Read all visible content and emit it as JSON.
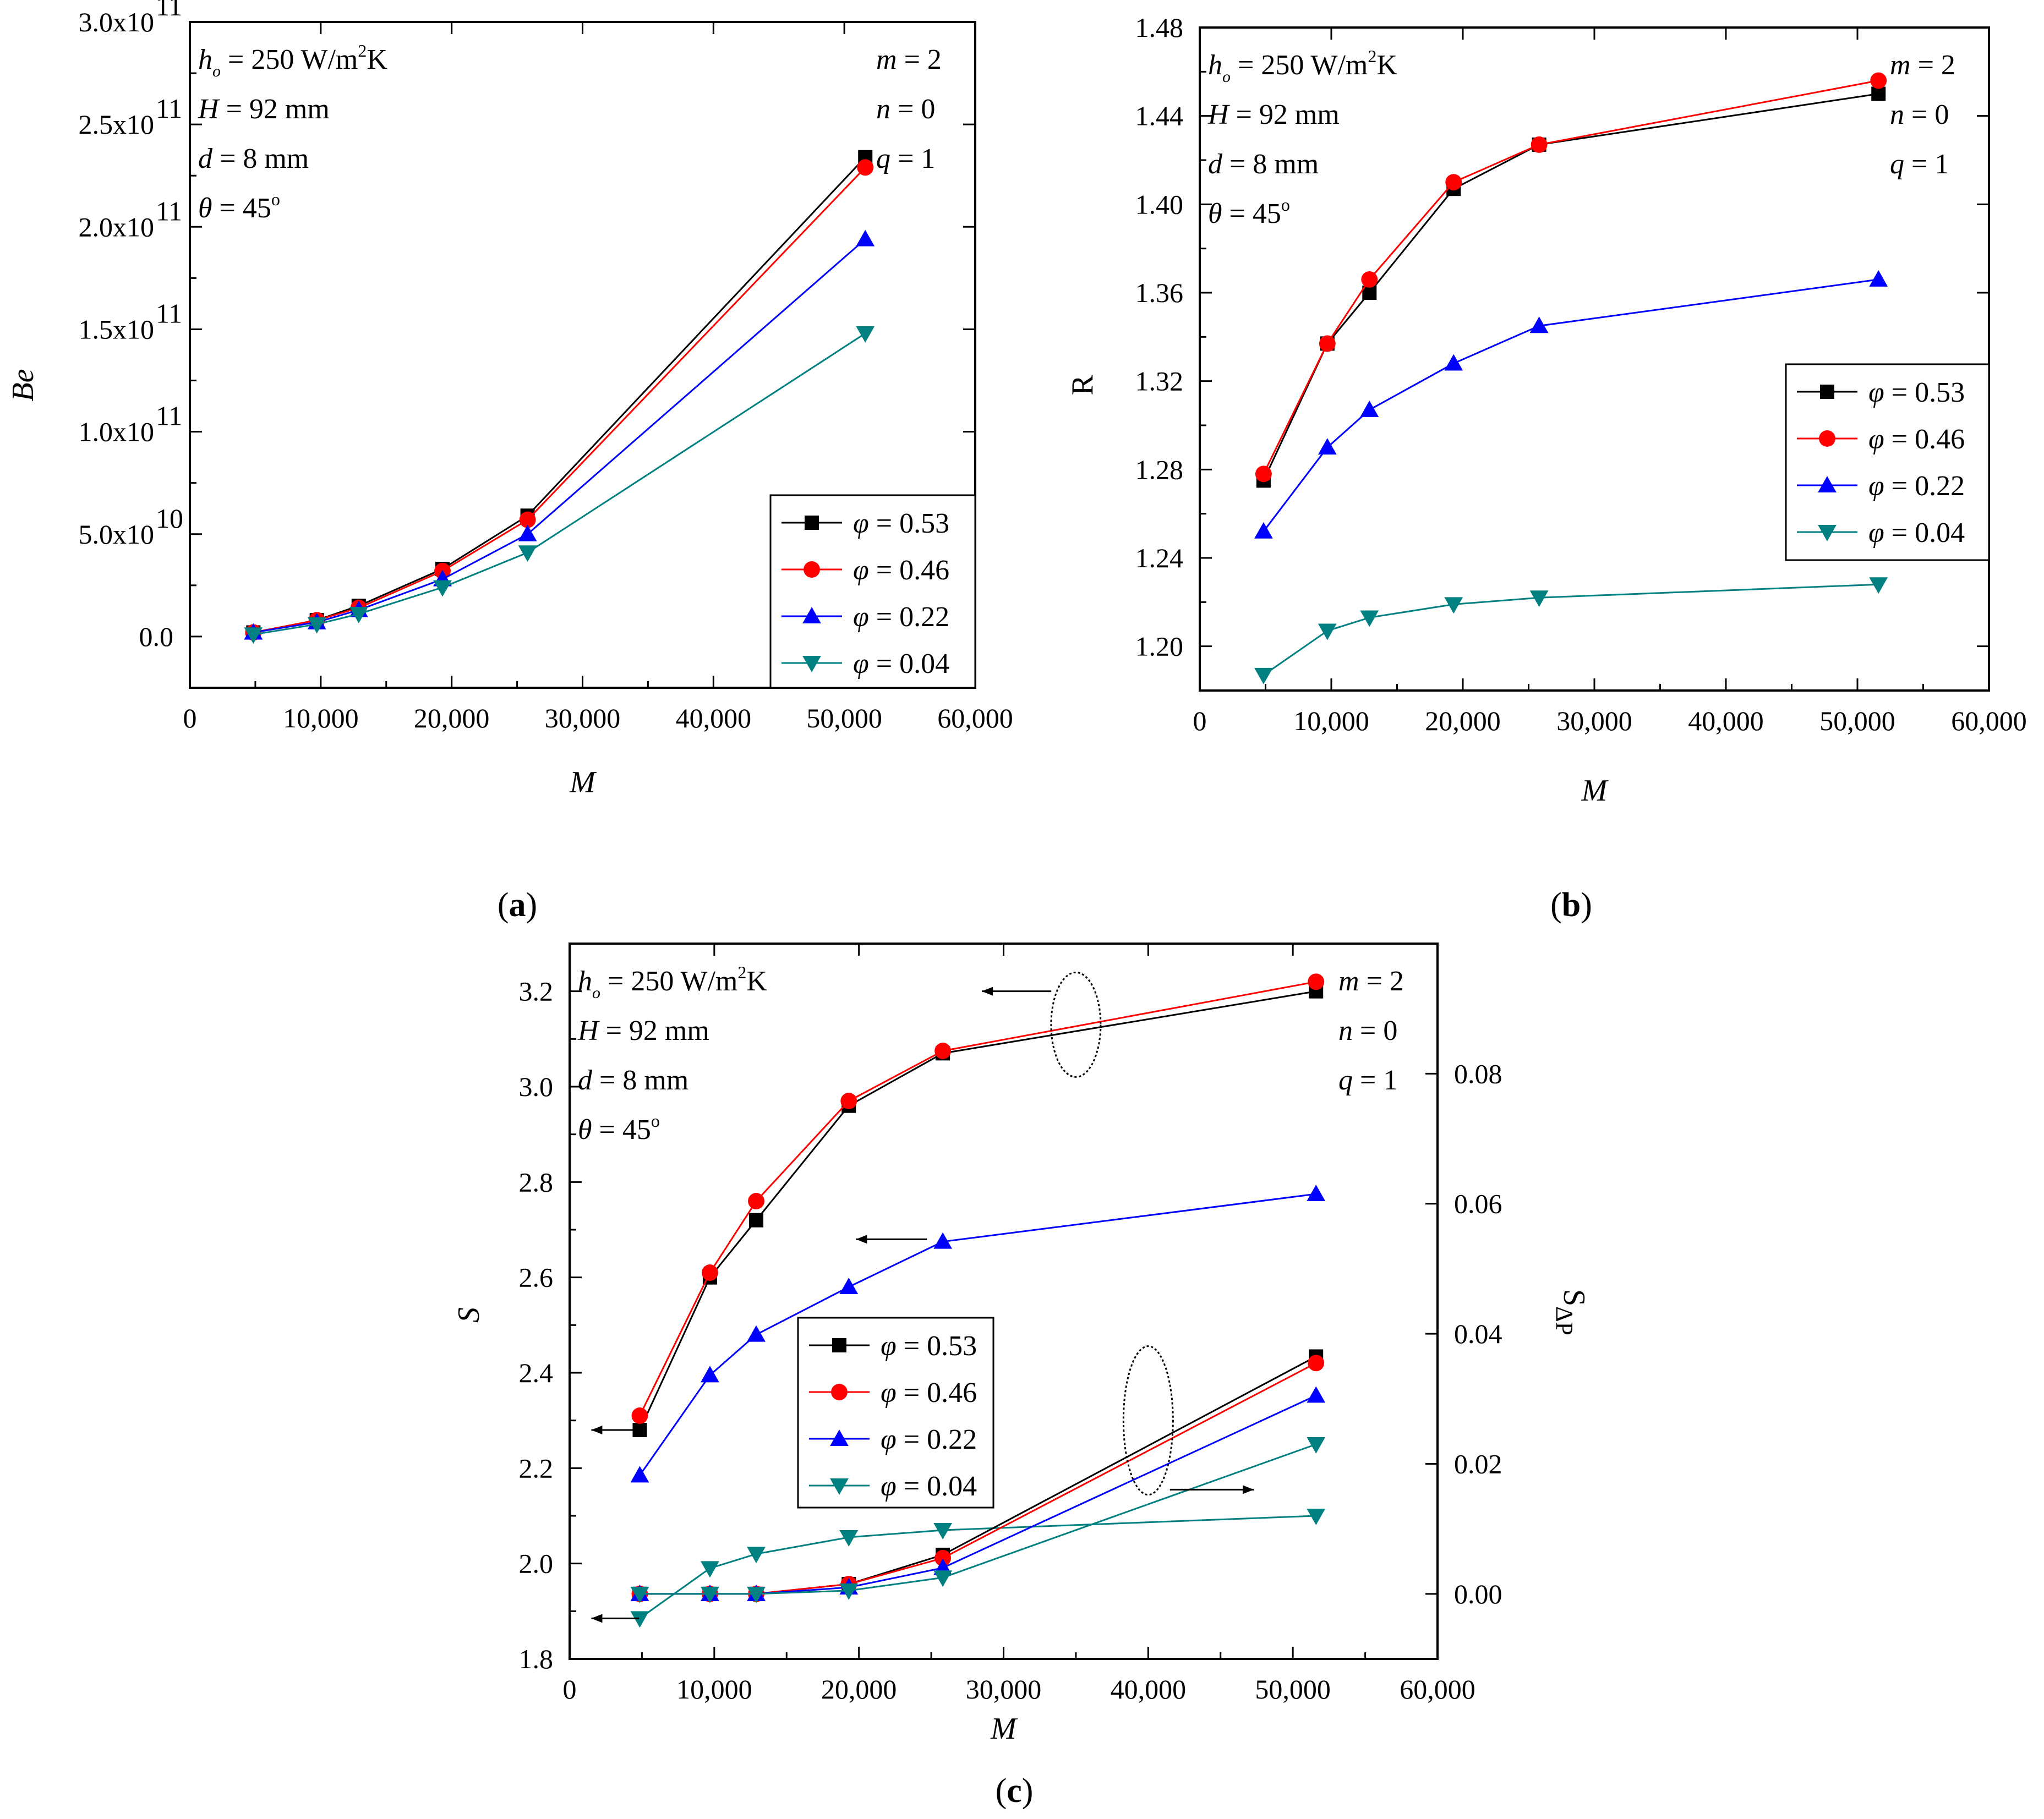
{
  "chart_data": [
    {
      "id": "a",
      "type": "line",
      "panel_label": "a",
      "xlabel": "M",
      "ylabel": "Be",
      "xlim": [
        0,
        60000
      ],
      "ylim": [
        -25000000000.0,
        300000000000.0
      ],
      "xticks": [
        "0",
        "10,000",
        "20,000",
        "30,000",
        "40,000",
        "50,000",
        "60,000"
      ],
      "ytick_values": [
        0,
        50000000000.0,
        100000000000.0,
        150000000000.0,
        200000000000.0,
        250000000000.0,
        300000000000.0
      ],
      "yticks": [
        {
          "mant": "0.0",
          "exp": ""
        },
        {
          "mant": "5.0x10",
          "exp": "10"
        },
        {
          "mant": "1.0x10",
          "exp": "11"
        },
        {
          "mant": "1.5x10",
          "exp": "11"
        },
        {
          "mant": "2.0x10",
          "exp": "11"
        },
        {
          "mant": "2.5x10",
          "exp": "11"
        },
        {
          "mant": "3.0x10",
          "exp": "11"
        }
      ],
      "x": [
        4850,
        9700,
        12900,
        19300,
        25800,
        51600
      ],
      "series": [
        {
          "name": "φ = 0.53",
          "phi": "0.53",
          "marker": "square",
          "color": "#000000",
          "values": [
            2000000000.0,
            8000000000.0,
            15000000000.0,
            33000000000.0,
            59000000000.0,
            234000000000.0
          ]
        },
        {
          "name": "φ = 0.46",
          "phi": "0.46",
          "marker": "circle",
          "color": "#ff0000",
          "values": [
            2000000000.0,
            8000000000.0,
            14000000000.0,
            32000000000.0,
            57000000000.0,
            229000000000.0
          ]
        },
        {
          "name": "φ = 0.22",
          "phi": "0.22",
          "marker": "triangle-up",
          "color": "#0000ff",
          "values": [
            2000000000.0,
            7000000000.0,
            13000000000.0,
            28000000000.0,
            50000000000.0,
            194000000000.0
          ]
        },
        {
          "name": "φ = 0.04",
          "phi": "0.04",
          "marker": "triangle-down",
          "color": "#008080",
          "values": [
            1000000000.0,
            6000000000.0,
            11000000000.0,
            24000000000.0,
            41000000000.0,
            148000000000.0
          ]
        }
      ]
    },
    {
      "id": "b",
      "type": "line",
      "panel_label": "b",
      "xlabel": "M",
      "ylabel": "R",
      "xlim": [
        0,
        60000
      ],
      "ylim": [
        1.18,
        1.48
      ],
      "xticks": [
        "0",
        "10,000",
        "20,000",
        "30,000",
        "40,000",
        "50,000",
        "60,000"
      ],
      "ytick_values": [
        1.2,
        1.24,
        1.28,
        1.32,
        1.36,
        1.4,
        1.44,
        1.48
      ],
      "yticks": [
        "1.20",
        "1.24",
        "1.28",
        "1.32",
        "1.36",
        "1.40",
        "1.44",
        "1.48"
      ],
      "x": [
        4850,
        9700,
        12900,
        19300,
        25800,
        51600
      ],
      "series": [
        {
          "name": "φ = 0.53",
          "phi": "0.53",
          "marker": "square",
          "color": "#000000",
          "values": [
            1.275,
            1.337,
            1.36,
            1.407,
            1.427,
            1.45
          ]
        },
        {
          "name": "φ = 0.46",
          "phi": "0.46",
          "marker": "circle",
          "color": "#ff0000",
          "values": [
            1.278,
            1.337,
            1.366,
            1.41,
            1.427,
            1.456
          ]
        },
        {
          "name": "φ = 0.22",
          "phi": "0.22",
          "marker": "triangle-up",
          "color": "#0000ff",
          "values": [
            1.252,
            1.29,
            1.307,
            1.328,
            1.345,
            1.366
          ]
        },
        {
          "name": "φ = 0.04",
          "phi": "0.04",
          "marker": "triangle-down",
          "color": "#008080",
          "values": [
            1.187,
            1.207,
            1.213,
            1.219,
            1.222,
            1.228
          ]
        }
      ]
    },
    {
      "id": "c",
      "type": "line",
      "panel_label": "c",
      "xlabel": "M",
      "ylabel": "S",
      "ylabel_right": "S",
      "ylabel_right_sub": "ΔP",
      "xlim": [
        0,
        60000
      ],
      "ylim": [
        1.8,
        3.3
      ],
      "ylim_right": [
        -0.01,
        0.1
      ],
      "xticks": [
        "0",
        "10,000",
        "20,000",
        "30,000",
        "40,000",
        "50,000",
        "60,000"
      ],
      "ytick_values": [
        1.8,
        2.0,
        2.2,
        2.4,
        2.6,
        2.8,
        3.0,
        3.2
      ],
      "yticks": [
        "1.8",
        "2.0",
        "2.2",
        "2.4",
        "2.6",
        "2.8",
        "3.0",
        "3.2"
      ],
      "ytick_values_right": [
        0.0,
        0.02,
        0.04,
        0.06,
        0.08
      ],
      "yticks_right": [
        "0.00",
        "0.02",
        "0.04",
        "0.06",
        "0.08"
      ],
      "x": [
        4850,
        9700,
        12900,
        19300,
        25800,
        51600
      ],
      "series": [
        {
          "name": "φ = 0.53",
          "phi": "0.53",
          "marker": "square",
          "color": "#000000",
          "axis": "left",
          "values": [
            2.28,
            2.6,
            2.72,
            2.96,
            3.07,
            3.2
          ]
        },
        {
          "name": "φ = 0.46",
          "phi": "0.46",
          "marker": "circle",
          "color": "#ff0000",
          "axis": "left",
          "values": [
            2.31,
            2.61,
            2.76,
            2.97,
            3.075,
            3.22
          ]
        },
        {
          "name": "φ = 0.22",
          "phi": "0.22",
          "marker": "triangle-up",
          "color": "#0000ff",
          "axis": "left",
          "values": [
            2.185,
            2.395,
            2.48,
            2.58,
            2.675,
            2.775
          ]
        },
        {
          "name": "φ = 0.04",
          "phi": "0.04",
          "marker": "triangle-down",
          "color": "#008080",
          "axis": "left",
          "values": [
            1.885,
            1.99,
            2.02,
            2.055,
            2.07,
            2.1
          ]
        },
        {
          "name": "φ = 0.53",
          "phi": "0.53",
          "marker": "square",
          "color": "#000000",
          "axis": "right",
          "values": [
            0.0,
            0.0,
            0.0,
            0.0015,
            0.006,
            0.0365
          ]
        },
        {
          "name": "φ = 0.46",
          "phi": "0.46",
          "marker": "circle",
          "color": "#ff0000",
          "axis": "right",
          "values": [
            0.0,
            0.0,
            0.0,
            0.0015,
            0.0055,
            0.0355
          ]
        },
        {
          "name": "φ = 0.22",
          "phi": "0.22",
          "marker": "triangle-up",
          "color": "#0000ff",
          "axis": "right",
          "values": [
            0.0,
            0.0,
            0.0,
            0.001,
            0.004,
            0.0305
          ]
        },
        {
          "name": "φ = 0.04",
          "phi": "0.04",
          "marker": "triangle-down",
          "color": "#008080",
          "axis": "right",
          "values": [
            0.0,
            0.0,
            0.0,
            0.0005,
            0.0025,
            0.023
          ]
        }
      ]
    }
  ],
  "annotations": {
    "left": [
      {
        "key": "h",
        "sub": "o",
        "rest": " = 250 W/m",
        "sup": "2",
        "tail": "K"
      },
      {
        "key": "H",
        "rest": " = 92 mm"
      },
      {
        "key": "d",
        "rest": " = 8 mm"
      },
      {
        "key": "θ",
        "rest": " = 45",
        "sup": "o"
      }
    ],
    "right": [
      {
        "key": "m",
        "rest": " = 2"
      },
      {
        "key": "n",
        "rest": " =  0"
      },
      {
        "key": "q",
        "rest": "  = 1"
      }
    ]
  },
  "legend_symbol": "φ"
}
